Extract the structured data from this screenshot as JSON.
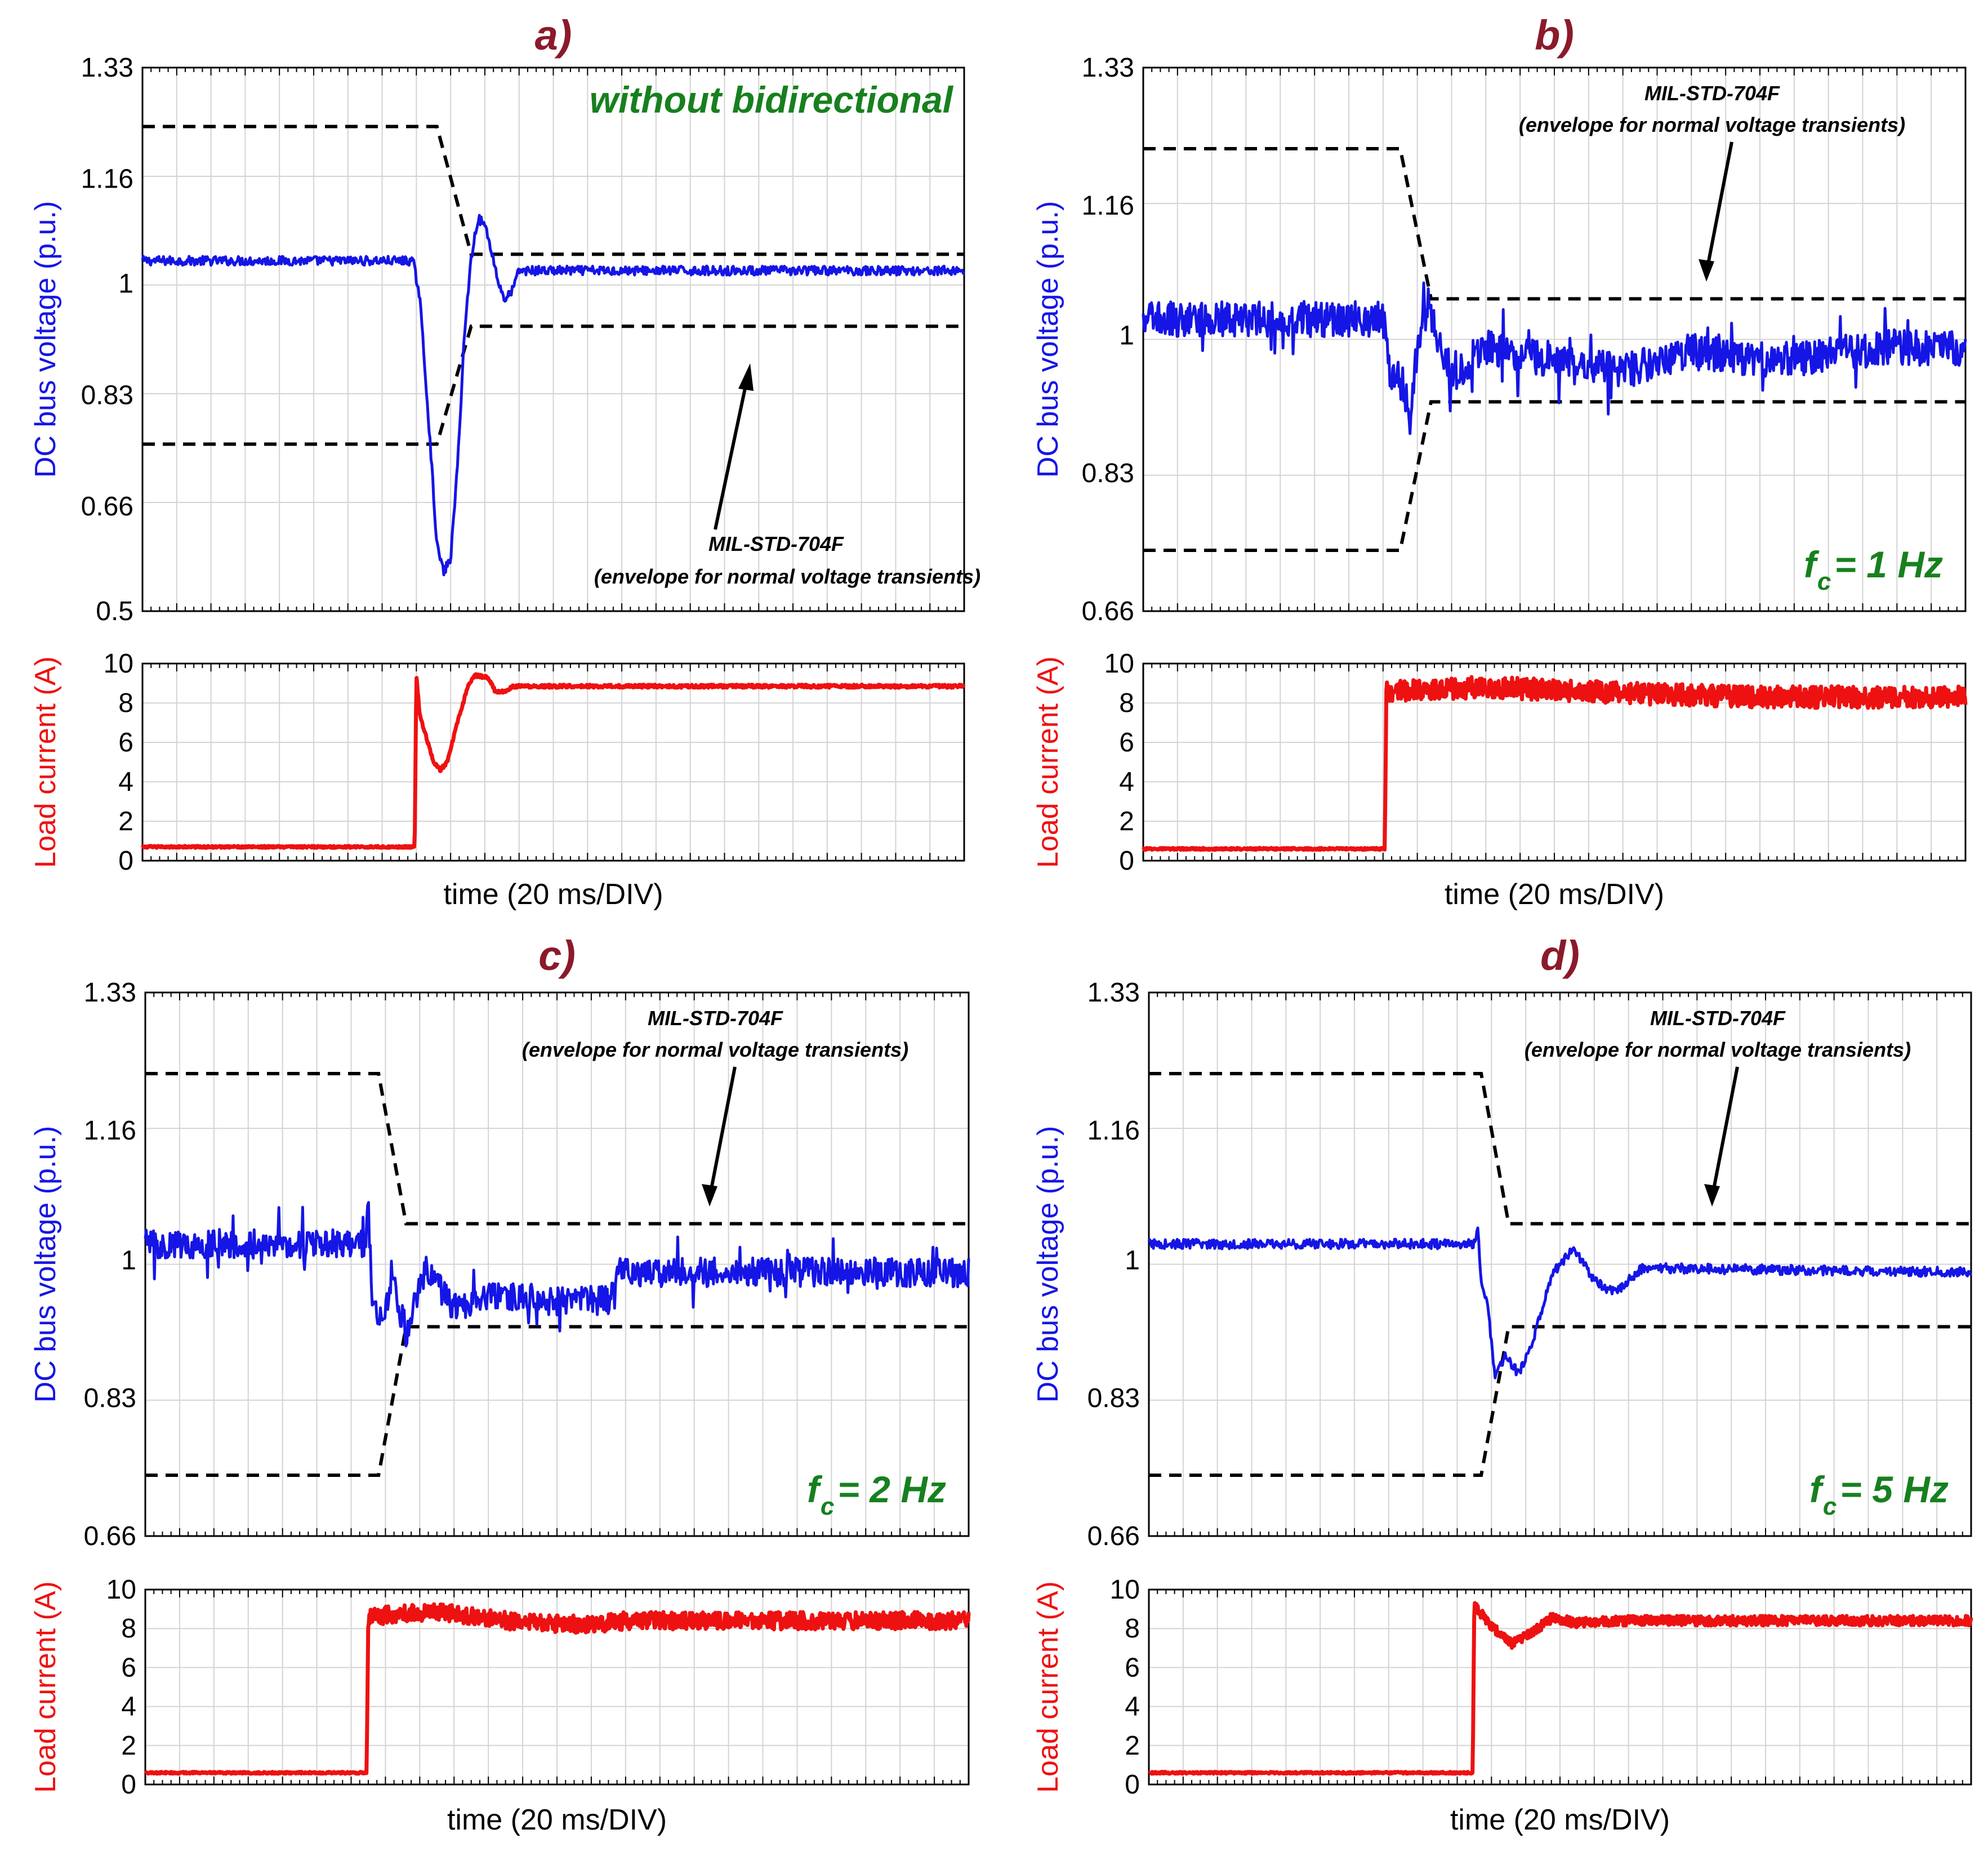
{
  "colors": {
    "voltage": "#1515e6",
    "current": "#ee1111",
    "envelope": "#000000",
    "panel_letter": "#8b1a2b",
    "green_text": "#17801e",
    "grid": "#d4d4d4"
  },
  "shared": {
    "voltage_axis_label": "DC bus voltage (p.u.)",
    "current_axis_label": "Load current (A)",
    "time_axis_label": "time (20 ms/DIV)",
    "envelope_title": "MIL-STD-704F",
    "envelope_subtitle": "(envelope for normal voltage transients)"
  },
  "chart_data": [
    {
      "panel": "a)",
      "type": "line",
      "corner_label": "without bidirectional",
      "fc": null,
      "voltage_axis": {
        "ylim": [
          0.5,
          1.33
        ],
        "ticks": [
          "0.5",
          "0.66",
          "0.83",
          "1",
          "1.16",
          "1.33"
        ]
      },
      "current_axis": {
        "ylim": [
          0,
          10
        ],
        "ticks": [
          "0",
          "2",
          "4",
          "6",
          "8",
          "10"
        ]
      },
      "x_range": [
        0,
        240
      ],
      "envelope_upper": [
        [
          0,
          1.24
        ],
        [
          86,
          1.24
        ],
        [
          96,
          1.045
        ],
        [
          240,
          1.045
        ]
      ],
      "envelope_lower": [
        [
          0,
          0.755
        ],
        [
          86,
          0.755
        ],
        [
          96,
          0.935
        ],
        [
          240,
          0.935
        ]
      ],
      "voltage_series": [
        [
          0,
          1.035
        ],
        [
          79,
          1.035
        ],
        [
          81,
          0.98
        ],
        [
          84,
          0.76
        ],
        [
          86,
          0.6
        ],
        [
          88,
          0.56
        ],
        [
          90,
          0.58
        ],
        [
          92,
          0.72
        ],
        [
          94,
          0.92
        ],
        [
          96,
          1.04
        ],
        [
          98,
          1.1
        ],
        [
          100,
          1.09
        ],
        [
          102,
          1.05
        ],
        [
          104,
          1.0
        ],
        [
          106,
          0.975
        ],
        [
          108,
          0.99
        ],
        [
          110,
          1.02
        ],
        [
          240,
          1.02
        ]
      ],
      "voltage_noise": 0.007,
      "current_series": [
        [
          0,
          0.7
        ],
        [
          79.5,
          0.7
        ],
        [
          80,
          9.4
        ],
        [
          81,
          7.4
        ],
        [
          85,
          5.0
        ],
        [
          87,
          4.6
        ],
        [
          89,
          5.0
        ],
        [
          92,
          7.0
        ],
        [
          95,
          8.8
        ],
        [
          97,
          9.4
        ],
        [
          101,
          9.3
        ],
        [
          103,
          8.6
        ],
        [
          106,
          8.6
        ],
        [
          108,
          8.85
        ],
        [
          240,
          8.85
        ]
      ],
      "current_noise": 0.08
    },
    {
      "panel": "b)",
      "type": "line",
      "corner_label": null,
      "fc": "1 Hz",
      "voltage_axis": {
        "ylim": [
          0.66,
          1.33
        ],
        "ticks": [
          "0.66",
          "0.83",
          "1",
          "1.16",
          "1.33"
        ]
      },
      "current_axis": {
        "ylim": [
          0,
          10
        ],
        "ticks": [
          "0",
          "2",
          "4",
          "6",
          "8",
          "10"
        ]
      },
      "x_range": [
        0,
        240
      ],
      "envelope_upper": [
        [
          0,
          1.23
        ],
        [
          75,
          1.23
        ],
        [
          84,
          1.045
        ],
        [
          240,
          1.045
        ]
      ],
      "envelope_lower": [
        [
          0,
          0.735
        ],
        [
          75,
          0.735
        ],
        [
          84,
          0.918
        ],
        [
          240,
          0.918
        ]
      ],
      "voltage_series": [
        [
          0,
          1.02
        ],
        [
          70,
          1.02
        ],
        [
          72,
          0.95
        ],
        [
          76,
          0.94
        ],
        [
          78,
          0.895
        ],
        [
          80,
          0.985
        ],
        [
          83,
          1.035
        ],
        [
          86,
          1.0
        ],
        [
          90,
          0.95
        ],
        [
          100,
          0.985
        ],
        [
          120,
          0.97
        ],
        [
          140,
          0.955
        ],
        [
          160,
          0.98
        ],
        [
          180,
          0.97
        ],
        [
          200,
          0.975
        ],
        [
          215,
          0.985
        ],
        [
          240,
          0.985
        ]
      ],
      "voltage_noise": 0.022,
      "current_series": [
        [
          0,
          0.6
        ],
        [
          70.5,
          0.6
        ],
        [
          71,
          8.6
        ],
        [
          100,
          8.8
        ],
        [
          140,
          8.5
        ],
        [
          180,
          8.3
        ],
        [
          240,
          8.3
        ]
      ],
      "current_noise": 0.55
    },
    {
      "panel": "c)",
      "type": "line",
      "corner_label": null,
      "fc": "2 Hz",
      "voltage_axis": {
        "ylim": [
          0.66,
          1.33
        ],
        "ticks": [
          "0.66",
          "0.83",
          "1",
          "1.16",
          "1.33"
        ]
      },
      "current_axis": {
        "ylim": [
          0,
          10
        ],
        "ticks": [
          "0",
          "2",
          "4",
          "6",
          "8",
          "10"
        ]
      },
      "x_range": [
        0,
        240
      ],
      "envelope_upper": [
        [
          0,
          1.23
        ],
        [
          68,
          1.23
        ],
        [
          76,
          1.045
        ],
        [
          240,
          1.045
        ]
      ],
      "envelope_lower": [
        [
          0,
          0.735
        ],
        [
          68,
          0.735
        ],
        [
          76,
          0.918
        ],
        [
          240,
          0.918
        ]
      ],
      "voltage_series": [
        [
          0,
          1.02
        ],
        [
          64,
          1.02
        ],
        [
          65,
          1.065
        ],
        [
          66,
          0.96
        ],
        [
          68,
          0.92
        ],
        [
          72,
          0.975
        ],
        [
          76,
          0.91
        ],
        [
          82,
          0.99
        ],
        [
          90,
          0.94
        ],
        [
          100,
          0.955
        ],
        [
          120,
          0.95
        ],
        [
          136,
          0.95
        ],
        [
          138,
          0.985
        ],
        [
          160,
          0.985
        ],
        [
          240,
          0.985
        ]
      ],
      "voltage_noise": 0.018,
      "current_series": [
        [
          0,
          0.6
        ],
        [
          64.5,
          0.6
        ],
        [
          65,
          8.6
        ],
        [
          85,
          8.9
        ],
        [
          110,
          8.3
        ],
        [
          130,
          8.2
        ],
        [
          140,
          8.4
        ],
        [
          240,
          8.4
        ]
      ],
      "current_noise": 0.45
    },
    {
      "panel": "d)",
      "type": "line",
      "corner_label": null,
      "fc": "5 Hz",
      "voltage_axis": {
        "ylim": [
          0.66,
          1.33
        ],
        "ticks": [
          "0.66",
          "0.83",
          "1",
          "1.16",
          "1.33"
        ]
      },
      "current_axis": {
        "ylim": [
          0,
          10
        ],
        "ticks": [
          "0",
          "2",
          "4",
          "6",
          "8",
          "10"
        ]
      },
      "x_range": [
        0,
        240
      ],
      "envelope_upper": [
        [
          0,
          1.23
        ],
        [
          97,
          1.23
        ],
        [
          105,
          1.045
        ],
        [
          240,
          1.045
        ]
      ],
      "envelope_lower": [
        [
          0,
          0.735
        ],
        [
          97,
          0.735
        ],
        [
          105,
          0.918
        ],
        [
          240,
          0.918
        ]
      ],
      "voltage_series": [
        [
          0,
          1.02
        ],
        [
          95,
          1.02
        ],
        [
          96,
          1.045
        ],
        [
          97,
          0.97
        ],
        [
          99,
          0.94
        ],
        [
          101,
          0.86
        ],
        [
          104,
          0.88
        ],
        [
          108,
          0.86
        ],
        [
          112,
          0.9
        ],
        [
          118,
          0.985
        ],
        [
          124,
          1.015
        ],
        [
          130,
          0.975
        ],
        [
          136,
          0.96
        ],
        [
          144,
          0.99
        ],
        [
          152,
          0.99
        ],
        [
          240,
          0.985
        ]
      ],
      "voltage_noise": 0.006,
      "current_series": [
        [
          0,
          0.6
        ],
        [
          94.5,
          0.6
        ],
        [
          95,
          9.2
        ],
        [
          100,
          8.1
        ],
        [
          106,
          7.2
        ],
        [
          112,
          7.8
        ],
        [
          118,
          8.6
        ],
        [
          124,
          8.3
        ],
        [
          140,
          8.4
        ],
        [
          240,
          8.4
        ]
      ],
      "current_noise": 0.25
    }
  ]
}
